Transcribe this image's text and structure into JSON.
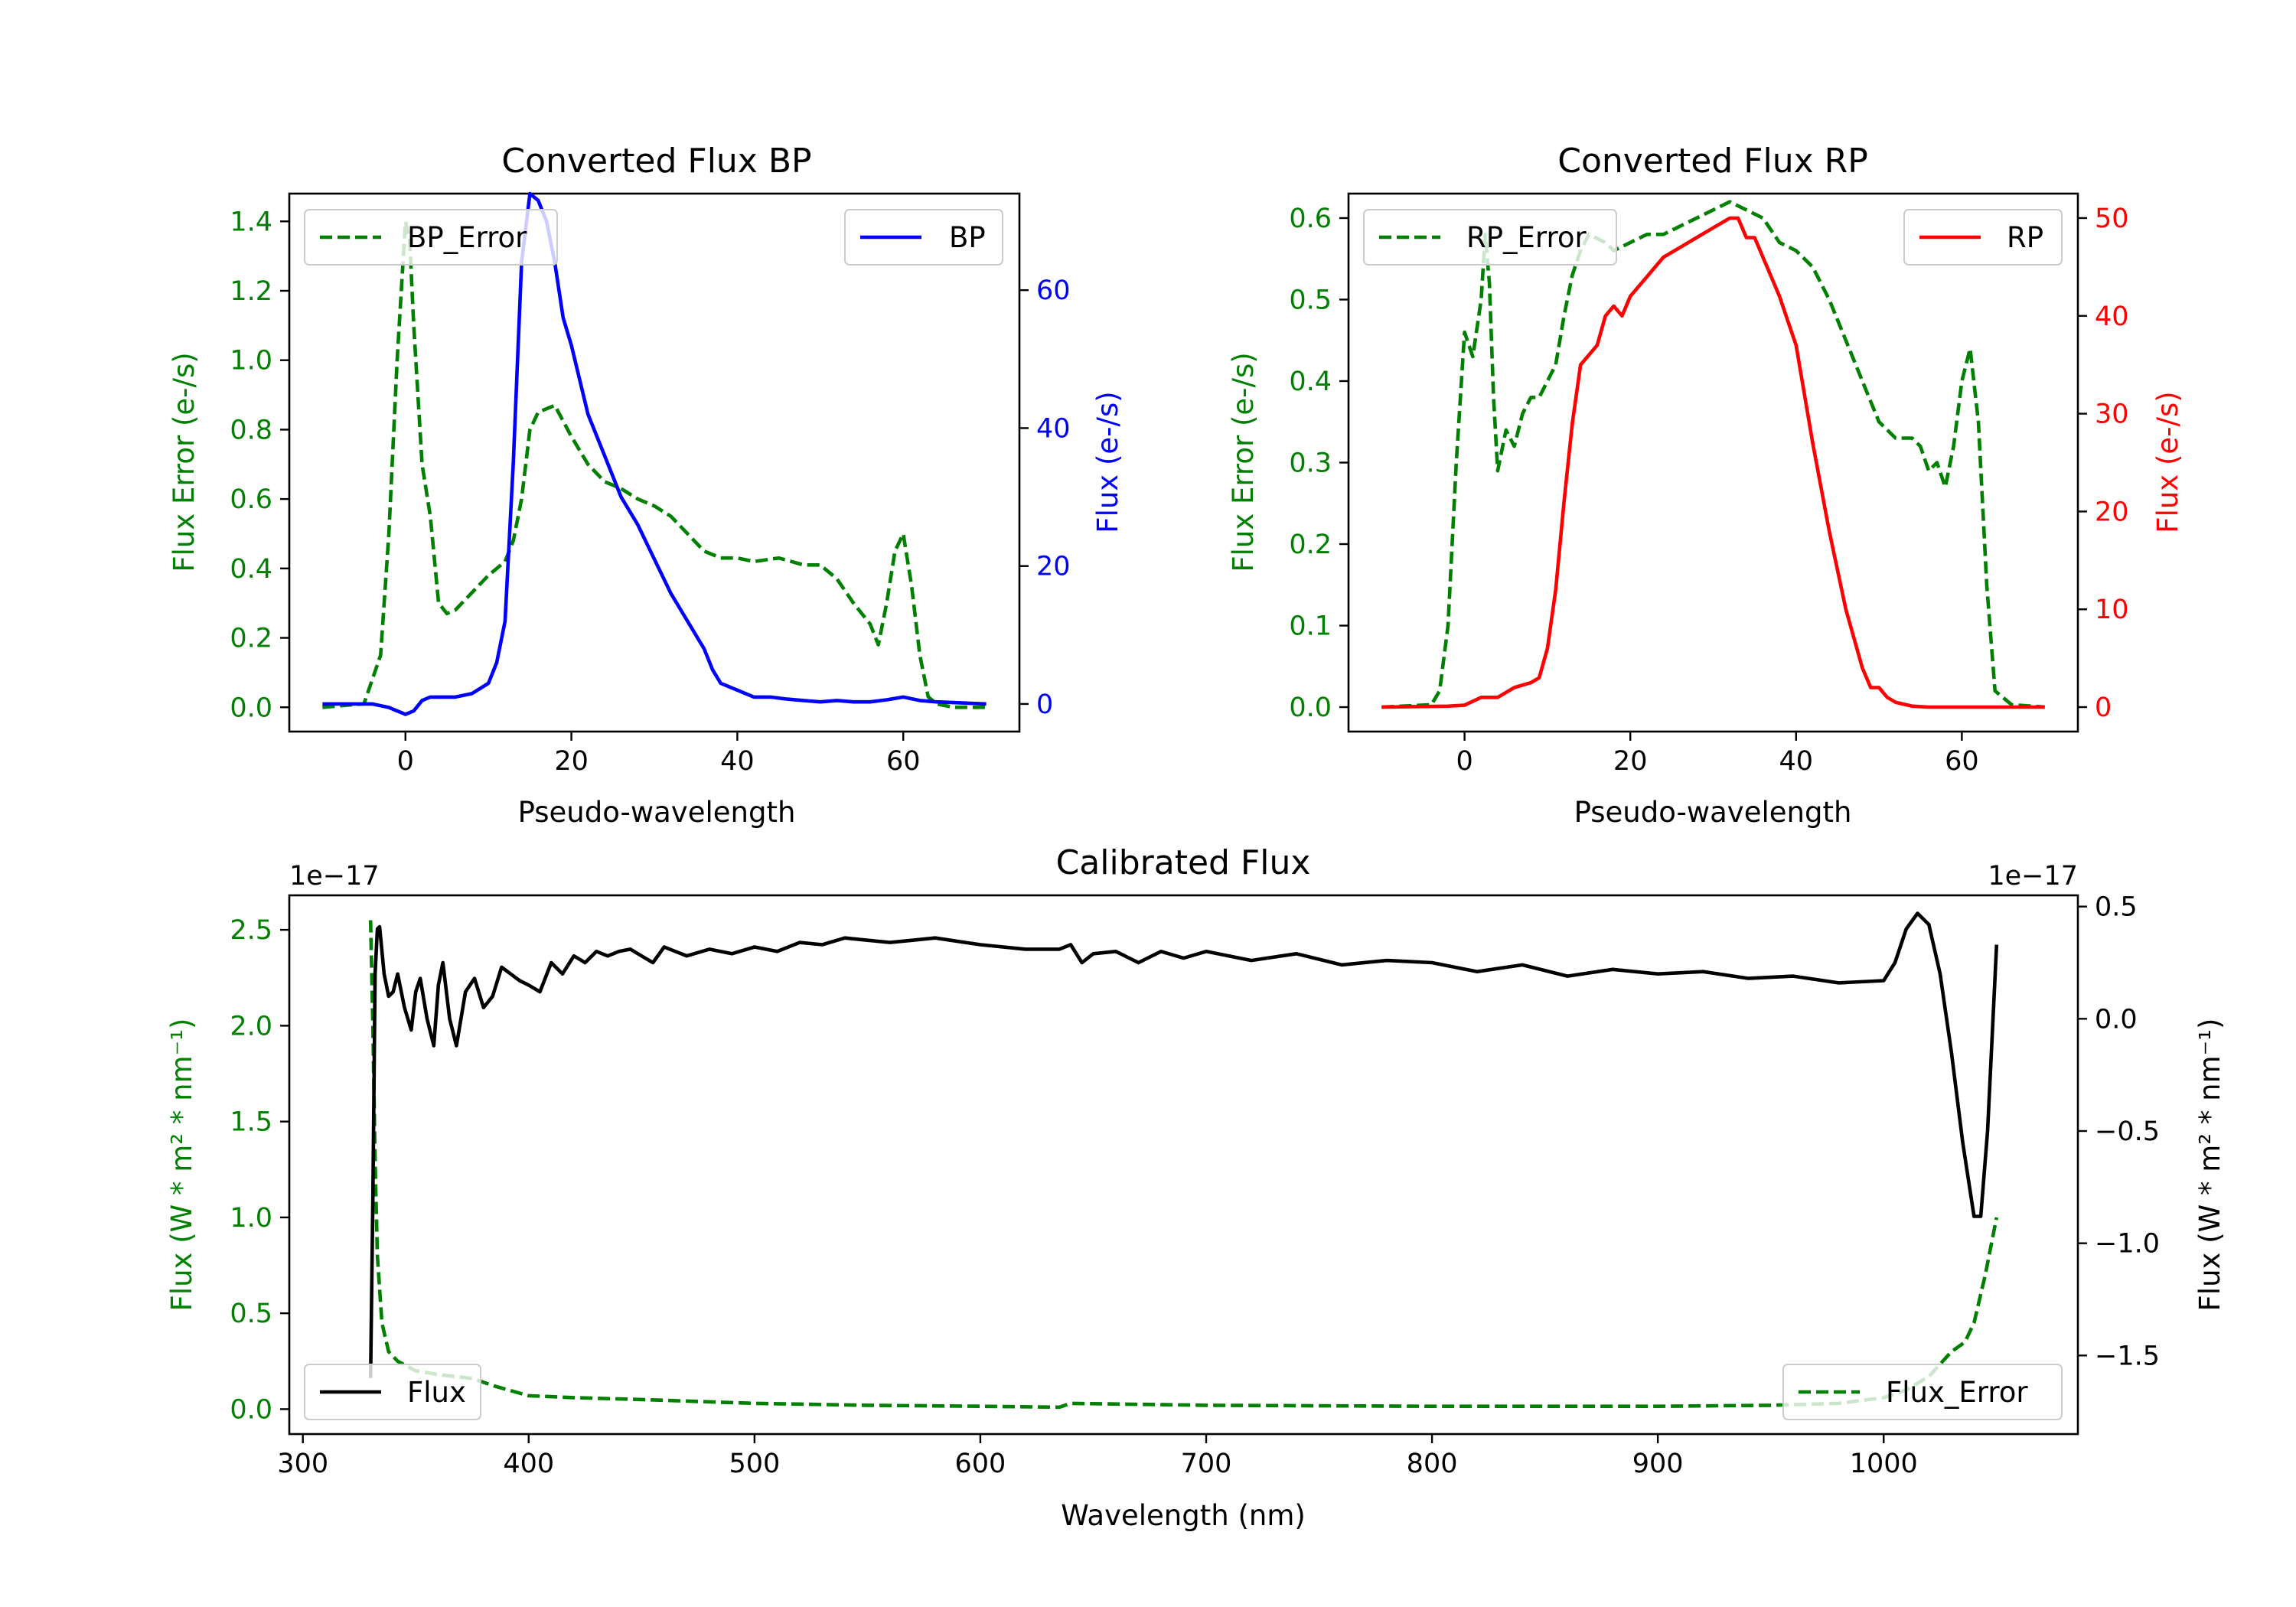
{
  "colors": {
    "green": "#008000",
    "blue": "#0000ff",
    "red": "#ff0000",
    "black": "#000000"
  },
  "chart_data": [
    {
      "id": "bp",
      "type": "line",
      "title": "Converted Flux BP",
      "xlabel": "Pseudo-wavelength",
      "ylabel_left": "Flux Error (e-/s)",
      "ylabel_right": "Flux (e-/s)",
      "xlim": [
        -14,
        74
      ],
      "ylim_left": [
        -0.07,
        1.48
      ],
      "ylim_right": [
        -4,
        74
      ],
      "xticks": [
        0,
        20,
        40,
        60
      ],
      "xtick_labels": [
        "0",
        "20",
        "40",
        "60"
      ],
      "yticks_left": [
        0.0,
        0.2,
        0.4,
        0.6,
        0.8,
        1.0,
        1.2,
        1.4
      ],
      "ytick_labels_left": [
        "0.0",
        "0.2",
        "0.4",
        "0.6",
        "0.8",
        "1.0",
        "1.2",
        "1.4"
      ],
      "yticks_right": [
        0,
        20,
        40,
        60
      ],
      "ytick_labels_right": [
        "0",
        "20",
        "40",
        "60"
      ],
      "legend_left": "BP_Error",
      "legend_right": "BP",
      "series": [
        {
          "name": "BP_Error",
          "axis": "left",
          "color": "#008000",
          "dashed": true,
          "x": [
            -10,
            -5,
            -3,
            -2,
            -1,
            0,
            0.5,
            1,
            2,
            3,
            4,
            5,
            6,
            8,
            10,
            12,
            13,
            14,
            15,
            16,
            18,
            20,
            22,
            24,
            26,
            28,
            30,
            32,
            34,
            36,
            38,
            40,
            42,
            45,
            48,
            50,
            52,
            54,
            56,
            57,
            58,
            59,
            60,
            61,
            62,
            63,
            64,
            66,
            70
          ],
          "y": [
            0,
            0.01,
            0.15,
            0.5,
            1.0,
            1.4,
            1.35,
            1.1,
            0.7,
            0.55,
            0.3,
            0.27,
            0.28,
            0.33,
            0.38,
            0.42,
            0.48,
            0.6,
            0.8,
            0.85,
            0.87,
            0.78,
            0.7,
            0.65,
            0.63,
            0.6,
            0.58,
            0.55,
            0.5,
            0.45,
            0.43,
            0.43,
            0.42,
            0.43,
            0.41,
            0.41,
            0.37,
            0.3,
            0.24,
            0.18,
            0.3,
            0.45,
            0.5,
            0.35,
            0.15,
            0.03,
            0.01,
            0,
            0
          ]
        },
        {
          "name": "BP",
          "axis": "right",
          "color": "#0000ff",
          "dashed": false,
          "x": [
            -10,
            -4,
            -2,
            0,
            1,
            2,
            3,
            4,
            6,
            8,
            10,
            11,
            12,
            13,
            14,
            15,
            16,
            17,
            18,
            19,
            20,
            22,
            24,
            26,
            28,
            30,
            32,
            34,
            36,
            37,
            38,
            40,
            42,
            44,
            46,
            48,
            50,
            52,
            54,
            56,
            58,
            60,
            62,
            64,
            66,
            70
          ],
          "y": [
            0,
            0,
            -0.5,
            -1.5,
            -1,
            0.5,
            1,
            1,
            1,
            1.5,
            3,
            6,
            12,
            35,
            64,
            74,
            73,
            70,
            64,
            56,
            52,
            42,
            36,
            30,
            26,
            21,
            16,
            12,
            8,
            5,
            3,
            2,
            1,
            1,
            0.7,
            0.5,
            0.3,
            0.5,
            0.3,
            0.3,
            0.6,
            1,
            0.5,
            0.3,
            0.2,
            0
          ]
        }
      ]
    },
    {
      "id": "rp",
      "type": "line",
      "title": "Converted Flux RP",
      "xlabel": "Pseudo-wavelength",
      "ylabel_left": "Flux Error (e-/s)",
      "ylabel_right": "Flux (e-/s)",
      "xlim": [
        -14,
        74
      ],
      "ylim_left": [
        -0.03,
        0.63
      ],
      "ylim_right": [
        -2.5,
        52.5
      ],
      "xticks": [
        0,
        20,
        40,
        60
      ],
      "xtick_labels": [
        "0",
        "20",
        "40",
        "60"
      ],
      "yticks_left": [
        0.0,
        0.1,
        0.2,
        0.3,
        0.4,
        0.5,
        0.6
      ],
      "ytick_labels_left": [
        "0.0",
        "0.1",
        "0.2",
        "0.3",
        "0.4",
        "0.5",
        "0.6"
      ],
      "yticks_right": [
        0,
        10,
        20,
        30,
        40,
        50
      ],
      "ytick_labels_right": [
        "0",
        "10",
        "20",
        "30",
        "40",
        "50"
      ],
      "legend_left": "RP_Error",
      "legend_right": "RP",
      "series": [
        {
          "name": "RP_Error",
          "axis": "left",
          "color": "#008000",
          "dashed": true,
          "x": [
            -10,
            -4,
            -3,
            -2,
            -1,
            0,
            1,
            2,
            2.5,
            3,
            3.5,
            4,
            5,
            6,
            7,
            8,
            9,
            10,
            11,
            12,
            13,
            14,
            15,
            17,
            18,
            20,
            22,
            24,
            26,
            28,
            30,
            32,
            34,
            36,
            38,
            40,
            42,
            44,
            46,
            48,
            50,
            52,
            54,
            55,
            56,
            57,
            58,
            59,
            60,
            61,
            62,
            63,
            64,
            66,
            70
          ],
          "y": [
            0,
            0.003,
            0.02,
            0.1,
            0.3,
            0.46,
            0.43,
            0.5,
            0.58,
            0.52,
            0.38,
            0.29,
            0.34,
            0.32,
            0.36,
            0.38,
            0.38,
            0.4,
            0.42,
            0.48,
            0.53,
            0.56,
            0.58,
            0.57,
            0.56,
            0.57,
            0.58,
            0.58,
            0.59,
            0.6,
            0.61,
            0.62,
            0.61,
            0.6,
            0.57,
            0.56,
            0.54,
            0.5,
            0.45,
            0.4,
            0.35,
            0.33,
            0.33,
            0.32,
            0.29,
            0.3,
            0.27,
            0.32,
            0.4,
            0.44,
            0.35,
            0.15,
            0.02,
            0.003,
            0
          ]
        },
        {
          "name": "RP",
          "axis": "right",
          "color": "#ff0000",
          "dashed": false,
          "x": [
            -10,
            -2,
            0,
            2,
            4,
            6,
            8,
            9,
            10,
            11,
            12,
            13,
            14,
            15,
            16,
            17,
            18,
            19,
            20,
            22,
            24,
            26,
            28,
            30,
            32,
            33,
            34,
            35,
            36,
            38,
            40,
            42,
            44,
            46,
            48,
            49,
            50,
            51,
            52,
            54,
            56,
            60,
            70
          ],
          "y": [
            0,
            0.1,
            0.2,
            1,
            1,
            2,
            2.5,
            3,
            6,
            12,
            21,
            29,
            35,
            36,
            37,
            40,
            41,
            40,
            42,
            44,
            46,
            47,
            48,
            49,
            50,
            50,
            48,
            48,
            46,
            42,
            37,
            27,
            18,
            10,
            4,
            2,
            2,
            1,
            0.5,
            0.1,
            0,
            0,
            0
          ]
        }
      ]
    },
    {
      "id": "cal",
      "type": "line",
      "title": "Calibrated Flux",
      "xlabel": "Wavelength (nm)",
      "ylabel_left": "Flux (W * m² * nm⁻¹)",
      "ylabel_right": "Flux (W * m² * nm⁻¹)",
      "offset_left": "1e−17",
      "offset_right": "1e−17",
      "xlim": [
        294,
        1086
      ],
      "ylim_left": [
        -0.13,
        2.68
      ],
      "ylim_right": [
        -1.85,
        0.55
      ],
      "xticks": [
        300,
        400,
        500,
        600,
        700,
        800,
        900,
        1000
      ],
      "xtick_labels": [
        "300",
        "400",
        "500",
        "600",
        "700",
        "800",
        "900",
        "1000"
      ],
      "yticks_left": [
        0.0,
        0.5,
        1.0,
        1.5,
        2.0,
        2.5
      ],
      "ytick_labels_left": [
        "0.0",
        "0.5",
        "1.0",
        "1.5",
        "2.0",
        "2.5"
      ],
      "yticks_right": [
        -1.5,
        -1.0,
        -0.5,
        0.0,
        0.5
      ],
      "ytick_labels_right": [
        "−1.5",
        "−1.0",
        "−0.5",
        "0.0",
        "0.5"
      ],
      "legend_left": "Flux",
      "legend_right": "Flux_Error",
      "series": [
        {
          "name": "Flux_Error",
          "axis": "left",
          "color": "#008000",
          "dashed": true,
          "x": [
            330,
            331,
            332,
            333,
            335,
            338,
            342,
            350,
            360,
            375,
            385,
            400,
            420,
            450,
            500,
            550,
            600,
            635,
            640,
            700,
            800,
            900,
            950,
            980,
            1000,
            1010,
            1020,
            1030,
            1036,
            1040,
            1045,
            1050
          ],
          "y": [
            2.55,
            2.0,
            1.3,
            0.8,
            0.45,
            0.3,
            0.25,
            0.2,
            0.18,
            0.16,
            0.12,
            0.07,
            0.06,
            0.05,
            0.03,
            0.02,
            0.015,
            0.01,
            0.03,
            0.02,
            0.015,
            0.015,
            0.02,
            0.03,
            0.06,
            0.1,
            0.17,
            0.3,
            0.35,
            0.45,
            0.7,
            1.0
          ]
        },
        {
          "name": "Flux",
          "axis": "right",
          "color": "#000000",
          "dashed": false,
          "x": [
            330,
            331,
            332,
            333,
            334,
            336,
            338,
            340,
            342,
            345,
            348,
            350,
            352,
            355,
            358,
            360,
            362,
            365,
            368,
            372,
            376,
            380,
            384,
            388,
            392,
            396,
            400,
            405,
            410,
            415,
            420,
            425,
            430,
            435,
            440,
            445,
            450,
            455,
            460,
            470,
            480,
            490,
            500,
            510,
            520,
            530,
            540,
            550,
            560,
            570,
            580,
            600,
            620,
            635,
            640,
            645,
            650,
            660,
            670,
            680,
            690,
            700,
            720,
            740,
            760,
            780,
            800,
            820,
            840,
            860,
            880,
            900,
            920,
            940,
            960,
            980,
            1000,
            1005,
            1010,
            1015,
            1020,
            1025,
            1030,
            1035,
            1040,
            1043,
            1046,
            1050
          ],
          "y": [
            -1.6,
            -0.8,
            0.2,
            0.4,
            0.41,
            0.2,
            0.1,
            0.12,
            0.2,
            0.05,
            -0.05,
            0.12,
            0.18,
            0.0,
            -0.12,
            0.15,
            0.25,
            0.0,
            -0.12,
            0.12,
            0.18,
            0.05,
            0.1,
            0.23,
            0.2,
            0.17,
            0.15,
            0.12,
            0.25,
            0.2,
            0.28,
            0.25,
            0.3,
            0.28,
            0.3,
            0.31,
            0.28,
            0.25,
            0.32,
            0.28,
            0.31,
            0.29,
            0.32,
            0.3,
            0.34,
            0.33,
            0.36,
            0.35,
            0.34,
            0.35,
            0.36,
            0.33,
            0.31,
            0.31,
            0.33,
            0.25,
            0.29,
            0.3,
            0.25,
            0.3,
            0.27,
            0.3,
            0.26,
            0.29,
            0.24,
            0.26,
            0.25,
            0.21,
            0.24,
            0.19,
            0.22,
            0.2,
            0.21,
            0.18,
            0.19,
            0.16,
            0.17,
            0.25,
            0.4,
            0.47,
            0.42,
            0.2,
            -0.15,
            -0.55,
            -0.88,
            -0.88,
            -0.5,
            0.33
          ]
        }
      ]
    }
  ]
}
